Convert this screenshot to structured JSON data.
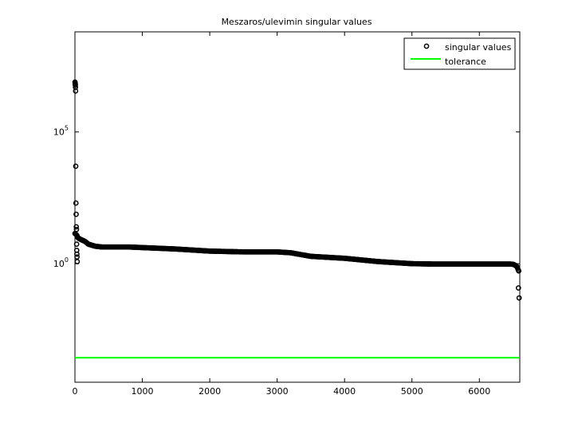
{
  "chart_data": {
    "type": "scatter",
    "title": "Meszaros/ulevimin singular values",
    "xlabel": "",
    "ylabel": "",
    "xlim": [
      0,
      6600
    ],
    "ylim_log10": [
      -4.5,
      8.8
    ],
    "y_scale": "log",
    "x_ticks": [
      0,
      1000,
      2000,
      3000,
      4000,
      5000,
      6000
    ],
    "x_tick_labels": [
      "0",
      "1000",
      "2000",
      "3000",
      "4000",
      "5000",
      "6000"
    ],
    "y_ticks": [
      {
        "base": "10",
        "exponent": "0",
        "log10": 0
      },
      {
        "base": "10",
        "exponent": "5",
        "log10": 5
      }
    ],
    "grid": false,
    "legend_position": "top-right",
    "legend": {
      "singular_values": "singular values",
      "tolerance": "tolerance"
    },
    "colors": {
      "singular_values": "#000000",
      "tolerance": "#00ff00"
    },
    "series": [
      {
        "name": "singular values",
        "marker": "circle",
        "outliers": [
          [
            1,
            7800000
          ],
          [
            3,
            7000000
          ],
          [
            5,
            6500000
          ],
          [
            6,
            5900000
          ],
          [
            8,
            5000000
          ],
          [
            10,
            3600000
          ],
          [
            12,
            5000
          ],
          [
            15,
            200
          ],
          [
            18,
            75
          ],
          [
            20,
            25
          ],
          [
            23,
            20
          ],
          [
            25,
            5.5
          ],
          [
            27,
            3.2
          ],
          [
            29,
            2.3
          ],
          [
            31,
            1.8
          ],
          [
            34,
            1.2
          ]
        ],
        "curve_x": [
          0,
          30,
          40,
          60,
          100,
          150,
          200,
          300,
          400,
          800,
          1500,
          2000,
          2500,
          3000,
          3200,
          3500,
          4000,
          4500,
          5000,
          5300,
          6000,
          6450,
          6500,
          6520,
          6540,
          6560,
          6570,
          6580,
          6590
        ],
        "curve_y": [
          14,
          12,
          10,
          9,
          8,
          7,
          5.5,
          4.6,
          4.3,
          4.3,
          3.6,
          3.0,
          2.8,
          2.8,
          2.6,
          1.9,
          1.6,
          1.2,
          1.0,
          0.97,
          0.97,
          0.97,
          0.95,
          0.9,
          0.85,
          0.75,
          0.65,
          0.55,
          0.5
        ],
        "tail_points": [
          [
            6580,
            0.12
          ],
          [
            6590,
            0.05
          ]
        ]
      },
      {
        "name": "tolerance",
        "value": 0.00027
      }
    ]
  }
}
